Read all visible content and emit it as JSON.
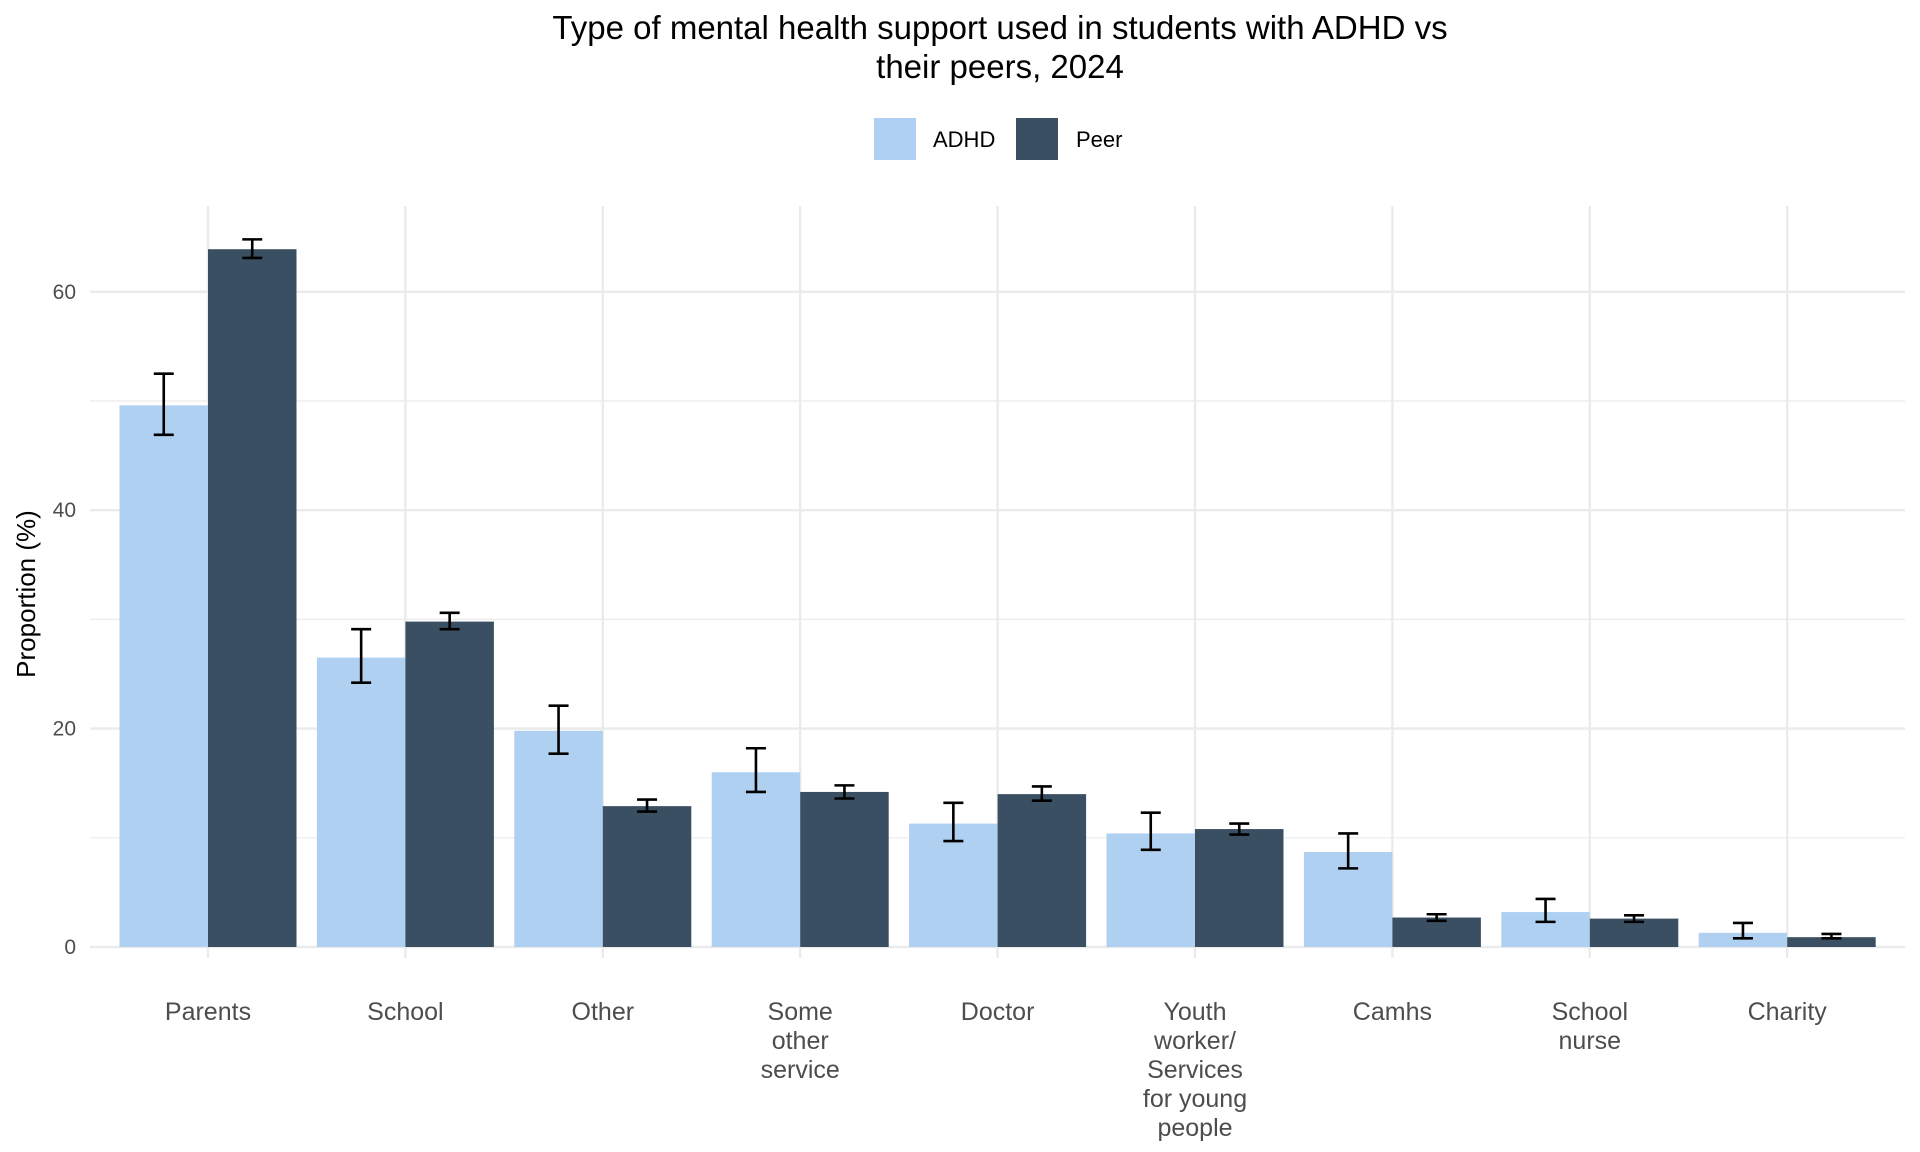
{
  "chart_data": {
    "type": "bar",
    "title_lines": [
      "Type of mental health support used in students with ADHD vs",
      "their peers, 2024"
    ],
    "title": "Type of mental health support used in students with ADHD vs their peers, 2024",
    "xlabel": "",
    "ylabel": "Proportion (%)",
    "ylim": [
      0,
      68
    ],
    "yticks": [
      0,
      20,
      40,
      60
    ],
    "yminor": [
      10,
      30,
      50
    ],
    "grid": true,
    "legend_position": "top",
    "categories": [
      "Parents",
      "School",
      "Other",
      "Some other service",
      "Doctor",
      "Youth worker/ Services for young people",
      "Camhs",
      "School nurse",
      "Charity"
    ],
    "category_label_lines": [
      [
        "Parents"
      ],
      [
        "School"
      ],
      [
        "Other"
      ],
      [
        "Some",
        "other",
        "service"
      ],
      [
        "Doctor"
      ],
      [
        "Youth",
        "worker/",
        "Services",
        "for young",
        "people"
      ],
      [
        "Camhs"
      ],
      [
        "School",
        "nurse"
      ],
      [
        "Charity"
      ]
    ],
    "series": [
      {
        "name": "ADHD",
        "color": "#b0d0f1",
        "values": [
          49.6,
          26.5,
          19.8,
          16.0,
          11.3,
          10.4,
          8.7,
          3.2,
          1.3
        ],
        "error_low": [
          46.9,
          24.2,
          17.7,
          14.2,
          9.7,
          8.9,
          7.2,
          2.3,
          0.8
        ],
        "error_high": [
          52.5,
          29.1,
          22.1,
          18.2,
          13.2,
          12.3,
          10.4,
          4.4,
          2.2
        ]
      },
      {
        "name": "Peer",
        "color": "#3b4f63",
        "values": [
          63.9,
          29.8,
          12.9,
          14.2,
          14.0,
          10.8,
          2.7,
          2.6,
          0.9
        ],
        "error_low": [
          63.1,
          29.1,
          12.4,
          13.6,
          13.4,
          10.3,
          2.4,
          2.3,
          0.8
        ],
        "error_high": [
          64.8,
          30.6,
          13.5,
          14.8,
          14.7,
          11.3,
          3.0,
          2.9,
          1.2
        ]
      }
    ]
  }
}
